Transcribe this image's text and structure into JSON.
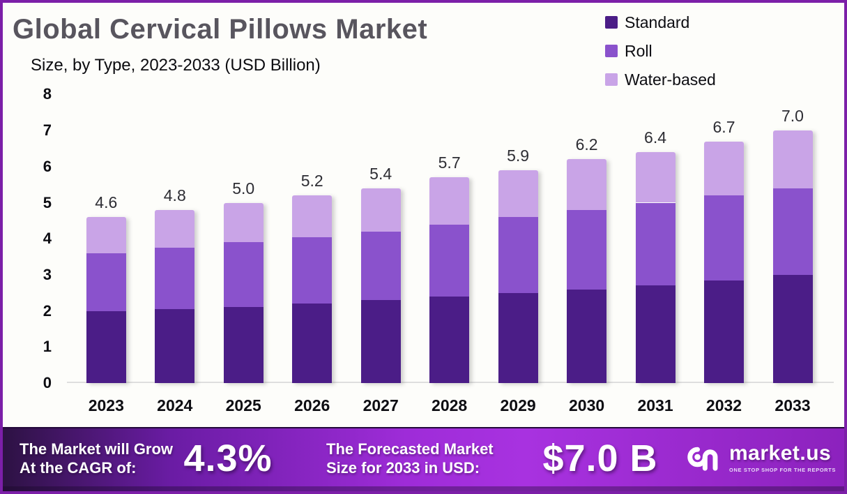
{
  "title": "Global Cervical Pillows Market",
  "subtitle": "Size, by Type, 2023-2033 (USD Billion)",
  "legend": [
    {
      "label": "Standard",
      "color": "#4b1d87"
    },
    {
      "label": "Roll",
      "color": "#8a52cc"
    },
    {
      "label": "Water-based",
      "color": "#c9a4e7"
    }
  ],
  "chart_data": {
    "type": "bar",
    "stacked": true,
    "title": "Global Cervical Pillows Market Size, by Type, 2023-2033 (USD Billion)",
    "categories": [
      "2023",
      "2024",
      "2025",
      "2026",
      "2027",
      "2028",
      "2029",
      "2030",
      "2031",
      "2032",
      "2033"
    ],
    "series": [
      {
        "name": "Standard",
        "color": "#4b1d87",
        "values": [
          2.0,
          2.05,
          2.1,
          2.2,
          2.3,
          2.4,
          2.5,
          2.6,
          2.7,
          2.85,
          3.0
        ]
      },
      {
        "name": "Roll",
        "color": "#8a52cc",
        "values": [
          1.6,
          1.7,
          1.8,
          1.85,
          1.9,
          2.0,
          2.1,
          2.2,
          2.3,
          2.35,
          2.4
        ]
      },
      {
        "name": "Water-based",
        "color": "#c9a4e7",
        "values": [
          1.0,
          1.05,
          1.1,
          1.15,
          1.2,
          1.3,
          1.3,
          1.4,
          1.4,
          1.5,
          1.6
        ]
      }
    ],
    "totals": [
      4.6,
      4.8,
      5.0,
      5.2,
      5.4,
      5.7,
      5.9,
      6.2,
      6.4,
      6.7,
      7.0
    ],
    "total_labels": [
      "4.6",
      "4.8",
      "5.0",
      "5.2",
      "5.4",
      "5.7",
      "5.9",
      "6.2",
      "6.4",
      "6.7",
      "7.0"
    ],
    "ylim": [
      0,
      8
    ],
    "yticks": [
      0,
      1,
      2,
      3,
      4,
      5,
      6,
      7,
      8
    ],
    "grid": false,
    "legend_position": "top-right"
  },
  "banner": {
    "cagr_label_line1": "The Market will Grow",
    "cagr_label_line2": "At the CAGR of:",
    "cagr_value": "4.3%",
    "forecast_label_line1": "The Forecasted Market",
    "forecast_label_line2": "Size for 2033 in USD:",
    "forecast_value": "$7.0 B",
    "logo_name": "market.us",
    "logo_tagline": "ONE STOP SHOP FOR THE REPORTS"
  },
  "colors": {
    "frame_border": "#7c1fa8",
    "title_text": "#58555e",
    "banner_gradient_start": "#2d1243",
    "banner_gradient_mid": "#9e2cd8",
    "banner_gradient_end": "#8c22bd",
    "axis_line": "#dedede",
    "background": "#fdfdfa"
  }
}
